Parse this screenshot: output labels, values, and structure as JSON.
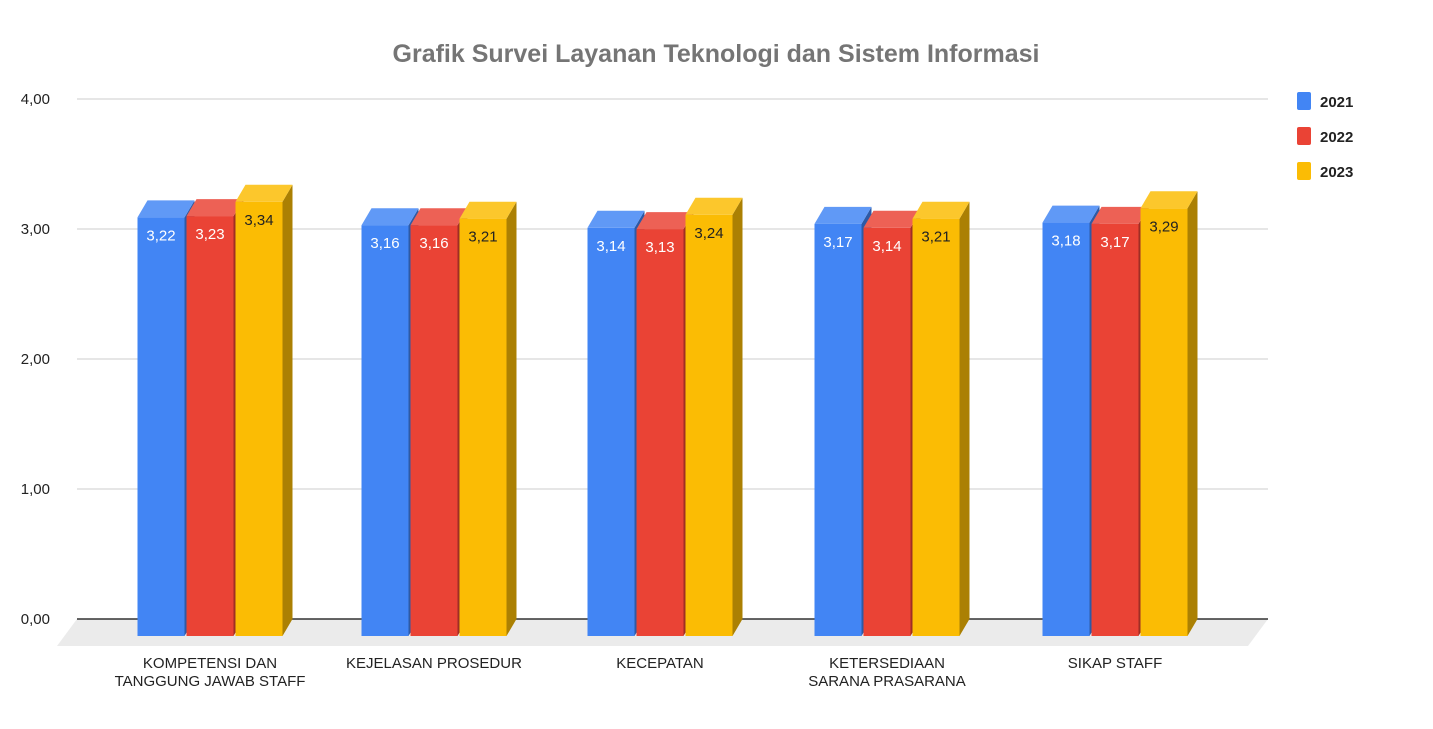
{
  "chart_data": {
    "type": "bar",
    "title": "Grafik Survei Layanan Teknologi dan Sistem Informasi",
    "xlabel": "",
    "ylabel": "",
    "ylim": [
      0,
      4
    ],
    "yticks": [
      "0,00",
      "1,00",
      "2,00",
      "3,00",
      "4,00"
    ],
    "yticks_values": [
      0,
      1,
      2,
      3,
      4
    ],
    "grid": true,
    "legend_position": "right",
    "style": "3d",
    "categories": [
      [
        "KOMPETENSI DAN",
        "TANGGUNG JAWAB STAFF"
      ],
      [
        "KEJELASAN PROSEDUR"
      ],
      [
        "KECEPATAN"
      ],
      [
        "KETERSEDIAAN",
        "SARANA PRASARANA"
      ],
      [
        "SIKAP STAFF"
      ]
    ],
    "series": [
      {
        "name": "2021",
        "color": "#4285F4",
        "values": [
          3.22,
          3.16,
          3.14,
          3.17,
          3.18
        ],
        "labels": [
          "3,22",
          "3,16",
          "3,14",
          "3,17",
          "3,18"
        ]
      },
      {
        "name": "2022",
        "color": "#EA4335",
        "values": [
          3.23,
          3.16,
          3.13,
          3.14,
          3.17
        ],
        "labels": [
          "3,23",
          "3,16",
          "3,13",
          "3,14",
          "3,17"
        ]
      },
      {
        "name": "2023",
        "color": "#FBBC04",
        "values": [
          3.34,
          3.21,
          3.24,
          3.21,
          3.29
        ],
        "labels": [
          "3,34",
          "3,21",
          "3,24",
          "3,21",
          "3,29"
        ]
      }
    ]
  }
}
